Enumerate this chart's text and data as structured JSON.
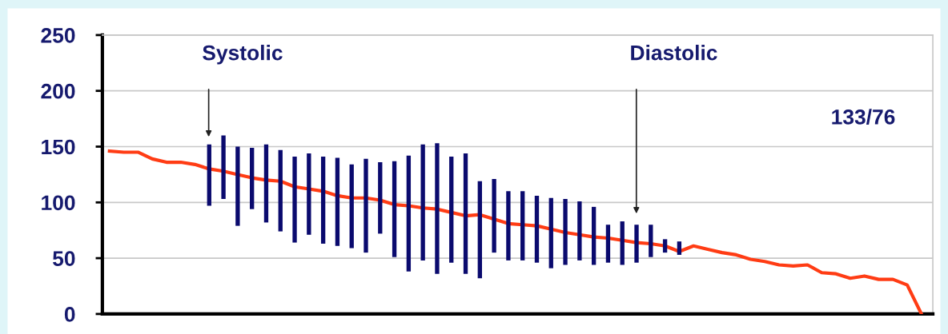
{
  "chart_data": {
    "type": "line",
    "tick_labels": "y",
    "grid": "y",
    "marker": "none",
    "line_style": "solid",
    "categories": [
      null,
      null,
      null,
      null,
      null,
      null,
      null,
      null,
      null,
      null,
      null,
      null,
      null,
      null,
      null,
      null,
      null,
      null,
      null,
      null,
      null,
      null,
      null,
      null,
      null,
      null,
      null,
      null,
      null,
      null,
      null,
      null,
      null,
      null,
      null,
      null,
      null,
      null,
      null,
      null,
      null,
      null,
      null,
      null,
      null,
      null,
      null,
      null,
      null,
      null,
      null,
      null,
      null,
      null,
      null,
      null,
      null,
      null
    ],
    "ylim": [
      0,
      250
    ],
    "yticks": [
      0,
      50,
      100,
      150,
      200,
      250
    ],
    "series": [
      {
        "color": "#ff3c14",
        "values": [
          146,
          145,
          145,
          139,
          136,
          136,
          134,
          130,
          128,
          125,
          122,
          120,
          119,
          114,
          112,
          110,
          106,
          104,
          104,
          102,
          98,
          97,
          95,
          94,
          91,
          88,
          89,
          85,
          81,
          80,
          79,
          76,
          73,
          71,
          69,
          68,
          66,
          64,
          63,
          61,
          56,
          61,
          58,
          55,
          53,
          49,
          47,
          44,
          43,
          44,
          37,
          36,
          32,
          34,
          31,
          31,
          26,
          0
        ]
      },
      {
        "type": "bar",
        "color": "#0a0a6e",
        "base": [
          null,
          null,
          null,
          null,
          null,
          null,
          null,
          97,
          103,
          79,
          94,
          82,
          74,
          64,
          71,
          63,
          61,
          59,
          55,
          72,
          51,
          38,
          48,
          36,
          46,
          36,
          32,
          55,
          48,
          48,
          46,
          41,
          44,
          48,
          44,
          46,
          44,
          46,
          51,
          55,
          53,
          null,
          null,
          null,
          null,
          null,
          null,
          null,
          null,
          null,
          null,
          null,
          null,
          null,
          null,
          null,
          null,
          null
        ],
        "values": [
          null,
          null,
          null,
          null,
          null,
          null,
          null,
          55,
          57,
          71,
          55,
          70,
          73,
          77,
          73,
          78,
          79,
          75,
          84,
          64,
          86,
          104,
          104,
          117,
          95,
          108,
          87,
          66,
          62,
          62,
          60,
          63,
          59,
          53,
          52,
          34,
          39,
          34,
          29,
          12,
          12,
          null,
          null,
          null,
          null,
          null,
          null,
          null,
          null,
          null,
          null,
          null,
          null,
          null,
          null,
          null,
          null,
          null
        ]
      }
    ],
    "annotations": [
      "Systolic",
      "Diastolic",
      "133/76"
    ]
  }
}
